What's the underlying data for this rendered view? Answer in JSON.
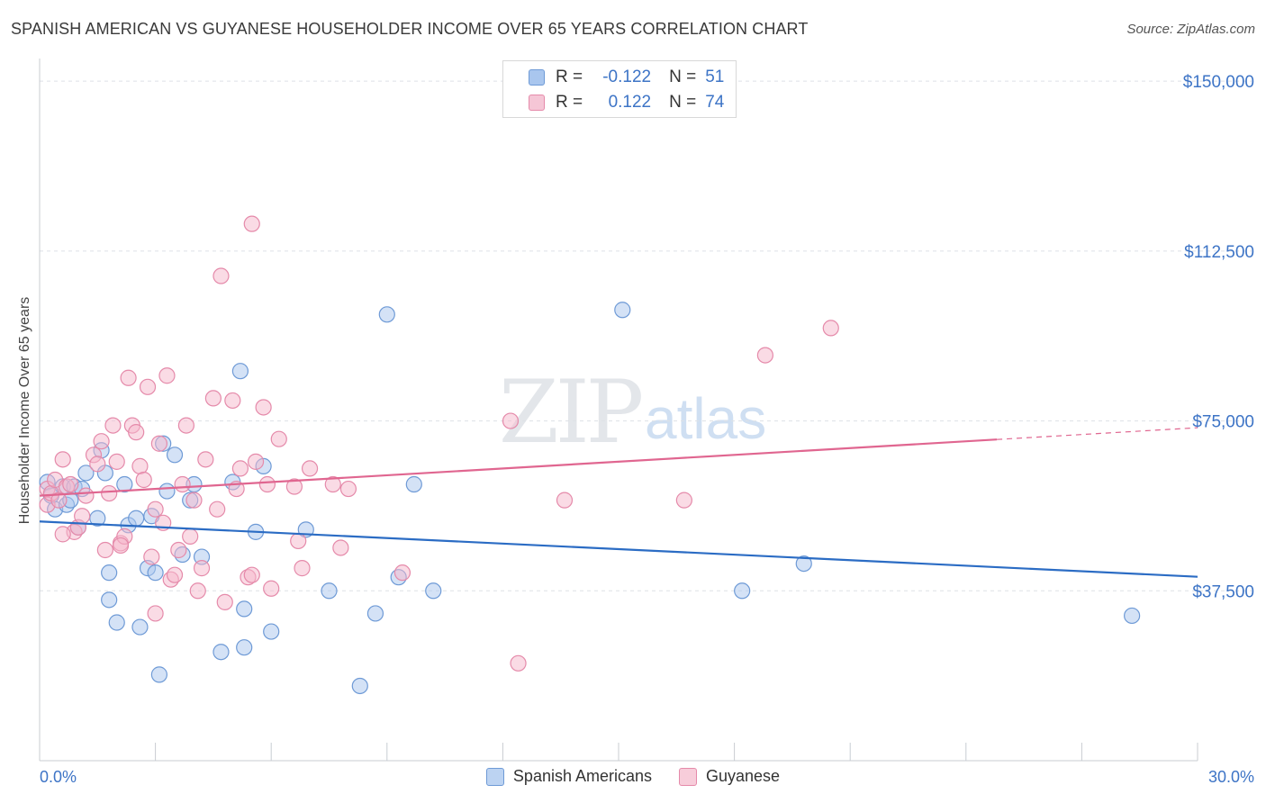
{
  "header": {
    "title": "SPANISH AMERICAN VS GUYANESE HOUSEHOLDER INCOME OVER 65 YEARS CORRELATION CHART",
    "source": "Source: ZipAtlas.com"
  },
  "watermark": {
    "zip": "ZIP",
    "atlas": "atlas"
  },
  "legend_top": {
    "rows": [
      {
        "r_label": "R =",
        "r_value": "-0.122",
        "n_label": "N =",
        "n_value": "51"
      },
      {
        "r_label": "R =",
        "r_value": "0.122",
        "n_label": "N =",
        "n_value": "74"
      }
    ]
  },
  "legend_bottom": {
    "items": [
      "Spanish Americans",
      "Guyanese"
    ]
  },
  "colors": {
    "blue_fill": "#a9c6ee",
    "blue_stroke": "#6e9ad6",
    "blue_line": "#2b6cc4",
    "pink_fill": "#f5b8cc",
    "pink_stroke": "#e58aaa",
    "pink_line": "#e06690",
    "tick_text": "#3d74c6",
    "grid": "#dde1e6"
  },
  "chart_data": {
    "type": "scatter",
    "title": "SPANISH AMERICAN VS GUYANESE HOUSEHOLDER INCOME OVER 65 YEARS CORRELATION CHART",
    "xlabel": "",
    "ylabel": "Householder Income Over 65 years",
    "xlim": [
      0,
      30
    ],
    "ylim": [
      0,
      154000
    ],
    "x_tick_labels": [
      "0.0%",
      "30.0%"
    ],
    "y_ticks": [
      37500,
      75000,
      112500,
      150000
    ],
    "y_tick_labels": [
      "$37,500",
      "$75,000",
      "$112,500",
      "$150,000"
    ],
    "grid": true,
    "legend_position": "top-center",
    "series": [
      {
        "name": "Spanish Americans",
        "r": -0.122,
        "n": 51,
        "trend": {
          "x": [
            0,
            30
          ],
          "y": [
            52800,
            40600
          ]
        },
        "points": [
          [
            0.2,
            61500
          ],
          [
            0.3,
            58500
          ],
          [
            0.4,
            55500
          ],
          [
            0.6,
            60500
          ],
          [
            0.7,
            56500
          ],
          [
            0.8,
            57500
          ],
          [
            0.9,
            60500
          ],
          [
            1.0,
            51500
          ],
          [
            1.2,
            63500
          ],
          [
            1.1,
            60000
          ],
          [
            1.5,
            53500
          ],
          [
            1.7,
            63500
          ],
          [
            1.6,
            68500
          ],
          [
            1.8,
            35500
          ],
          [
            1.8,
            41500
          ],
          [
            2.0,
            30500
          ],
          [
            2.2,
            61000
          ],
          [
            2.3,
            52000
          ],
          [
            2.5,
            53500
          ],
          [
            2.6,
            29500
          ],
          [
            2.8,
            42500
          ],
          [
            2.9,
            54000
          ],
          [
            3.0,
            41500
          ],
          [
            3.2,
            70000
          ],
          [
            3.3,
            59500
          ],
          [
            3.1,
            19000
          ],
          [
            3.5,
            67500
          ],
          [
            3.7,
            45500
          ],
          [
            3.9,
            57500
          ],
          [
            4.0,
            61000
          ],
          [
            4.2,
            45000
          ],
          [
            4.7,
            24000
          ],
          [
            5.0,
            61500
          ],
          [
            5.2,
            86000
          ],
          [
            5.3,
            33500
          ],
          [
            5.6,
            50500
          ],
          [
            5.8,
            65000
          ],
          [
            6.0,
            28500
          ],
          [
            6.9,
            51000
          ],
          [
            7.5,
            37500
          ],
          [
            8.7,
            32500
          ],
          [
            9.0,
            98500
          ],
          [
            9.3,
            40500
          ],
          [
            9.7,
            61000
          ],
          [
            10.2,
            37500
          ],
          [
            15.1,
            99500
          ],
          [
            18.2,
            37500
          ],
          [
            19.8,
            43500
          ],
          [
            28.3,
            32000
          ],
          [
            8.3,
            16500
          ],
          [
            5.3,
            25000
          ]
        ]
      },
      {
        "name": "Guyanese",
        "r": 0.122,
        "n": 74,
        "trend": {
          "x": [
            0,
            30
          ],
          "y": [
            58500,
            73500
          ],
          "solid_until_x": 24.8
        },
        "points": [
          [
            0.2,
            60000
          ],
          [
            0.2,
            56500
          ],
          [
            0.3,
            59000
          ],
          [
            0.4,
            62000
          ],
          [
            0.5,
            57500
          ],
          [
            0.6,
            66500
          ],
          [
            0.7,
            60500
          ],
          [
            0.8,
            61000
          ],
          [
            0.9,
            50500
          ],
          [
            1.0,
            51500
          ],
          [
            1.1,
            54000
          ],
          [
            1.2,
            58500
          ],
          [
            1.4,
            67500
          ],
          [
            1.5,
            65500
          ],
          [
            1.6,
            70500
          ],
          [
            1.7,
            46500
          ],
          [
            1.8,
            59000
          ],
          [
            1.9,
            74000
          ],
          [
            2.0,
            66000
          ],
          [
            2.1,
            48000
          ],
          [
            2.2,
            49500
          ],
          [
            2.3,
            84500
          ],
          [
            2.4,
            74000
          ],
          [
            2.5,
            72500
          ],
          [
            2.6,
            65000
          ],
          [
            2.7,
            62000
          ],
          [
            2.8,
            82500
          ],
          [
            2.9,
            45000
          ],
          [
            3.0,
            55500
          ],
          [
            3.1,
            70000
          ],
          [
            3.2,
            52500
          ],
          [
            3.3,
            85000
          ],
          [
            3.4,
            40000
          ],
          [
            3.5,
            41000
          ],
          [
            3.6,
            46500
          ],
          [
            3.7,
            61000
          ],
          [
            3.8,
            74000
          ],
          [
            3.9,
            49500
          ],
          [
            4.0,
            57500
          ],
          [
            4.1,
            37500
          ],
          [
            4.2,
            42500
          ],
          [
            4.3,
            66500
          ],
          [
            4.5,
            80000
          ],
          [
            4.6,
            55500
          ],
          [
            4.7,
            107000
          ],
          [
            4.8,
            35000
          ],
          [
            5.0,
            79500
          ],
          [
            5.1,
            60000
          ],
          [
            5.2,
            64500
          ],
          [
            5.4,
            40500
          ],
          [
            5.5,
            41000
          ],
          [
            5.6,
            66000
          ],
          [
            5.8,
            78000
          ],
          [
            5.9,
            61000
          ],
          [
            6.0,
            38000
          ],
          [
            6.2,
            71000
          ],
          [
            6.6,
            60500
          ],
          [
            6.7,
            48500
          ],
          [
            6.8,
            42500
          ],
          [
            7.0,
            64500
          ],
          [
            7.6,
            61000
          ],
          [
            7.8,
            47000
          ],
          [
            8.0,
            60000
          ],
          [
            9.4,
            41500
          ],
          [
            12.2,
            75000
          ],
          [
            12.4,
            21500
          ],
          [
            13.6,
            57500
          ],
          [
            16.7,
            57500
          ],
          [
            18.8,
            89500
          ],
          [
            20.5,
            95500
          ],
          [
            5.5,
            118500
          ],
          [
            3.0,
            32500
          ],
          [
            2.1,
            47500
          ],
          [
            0.6,
            50000
          ]
        ]
      }
    ]
  }
}
